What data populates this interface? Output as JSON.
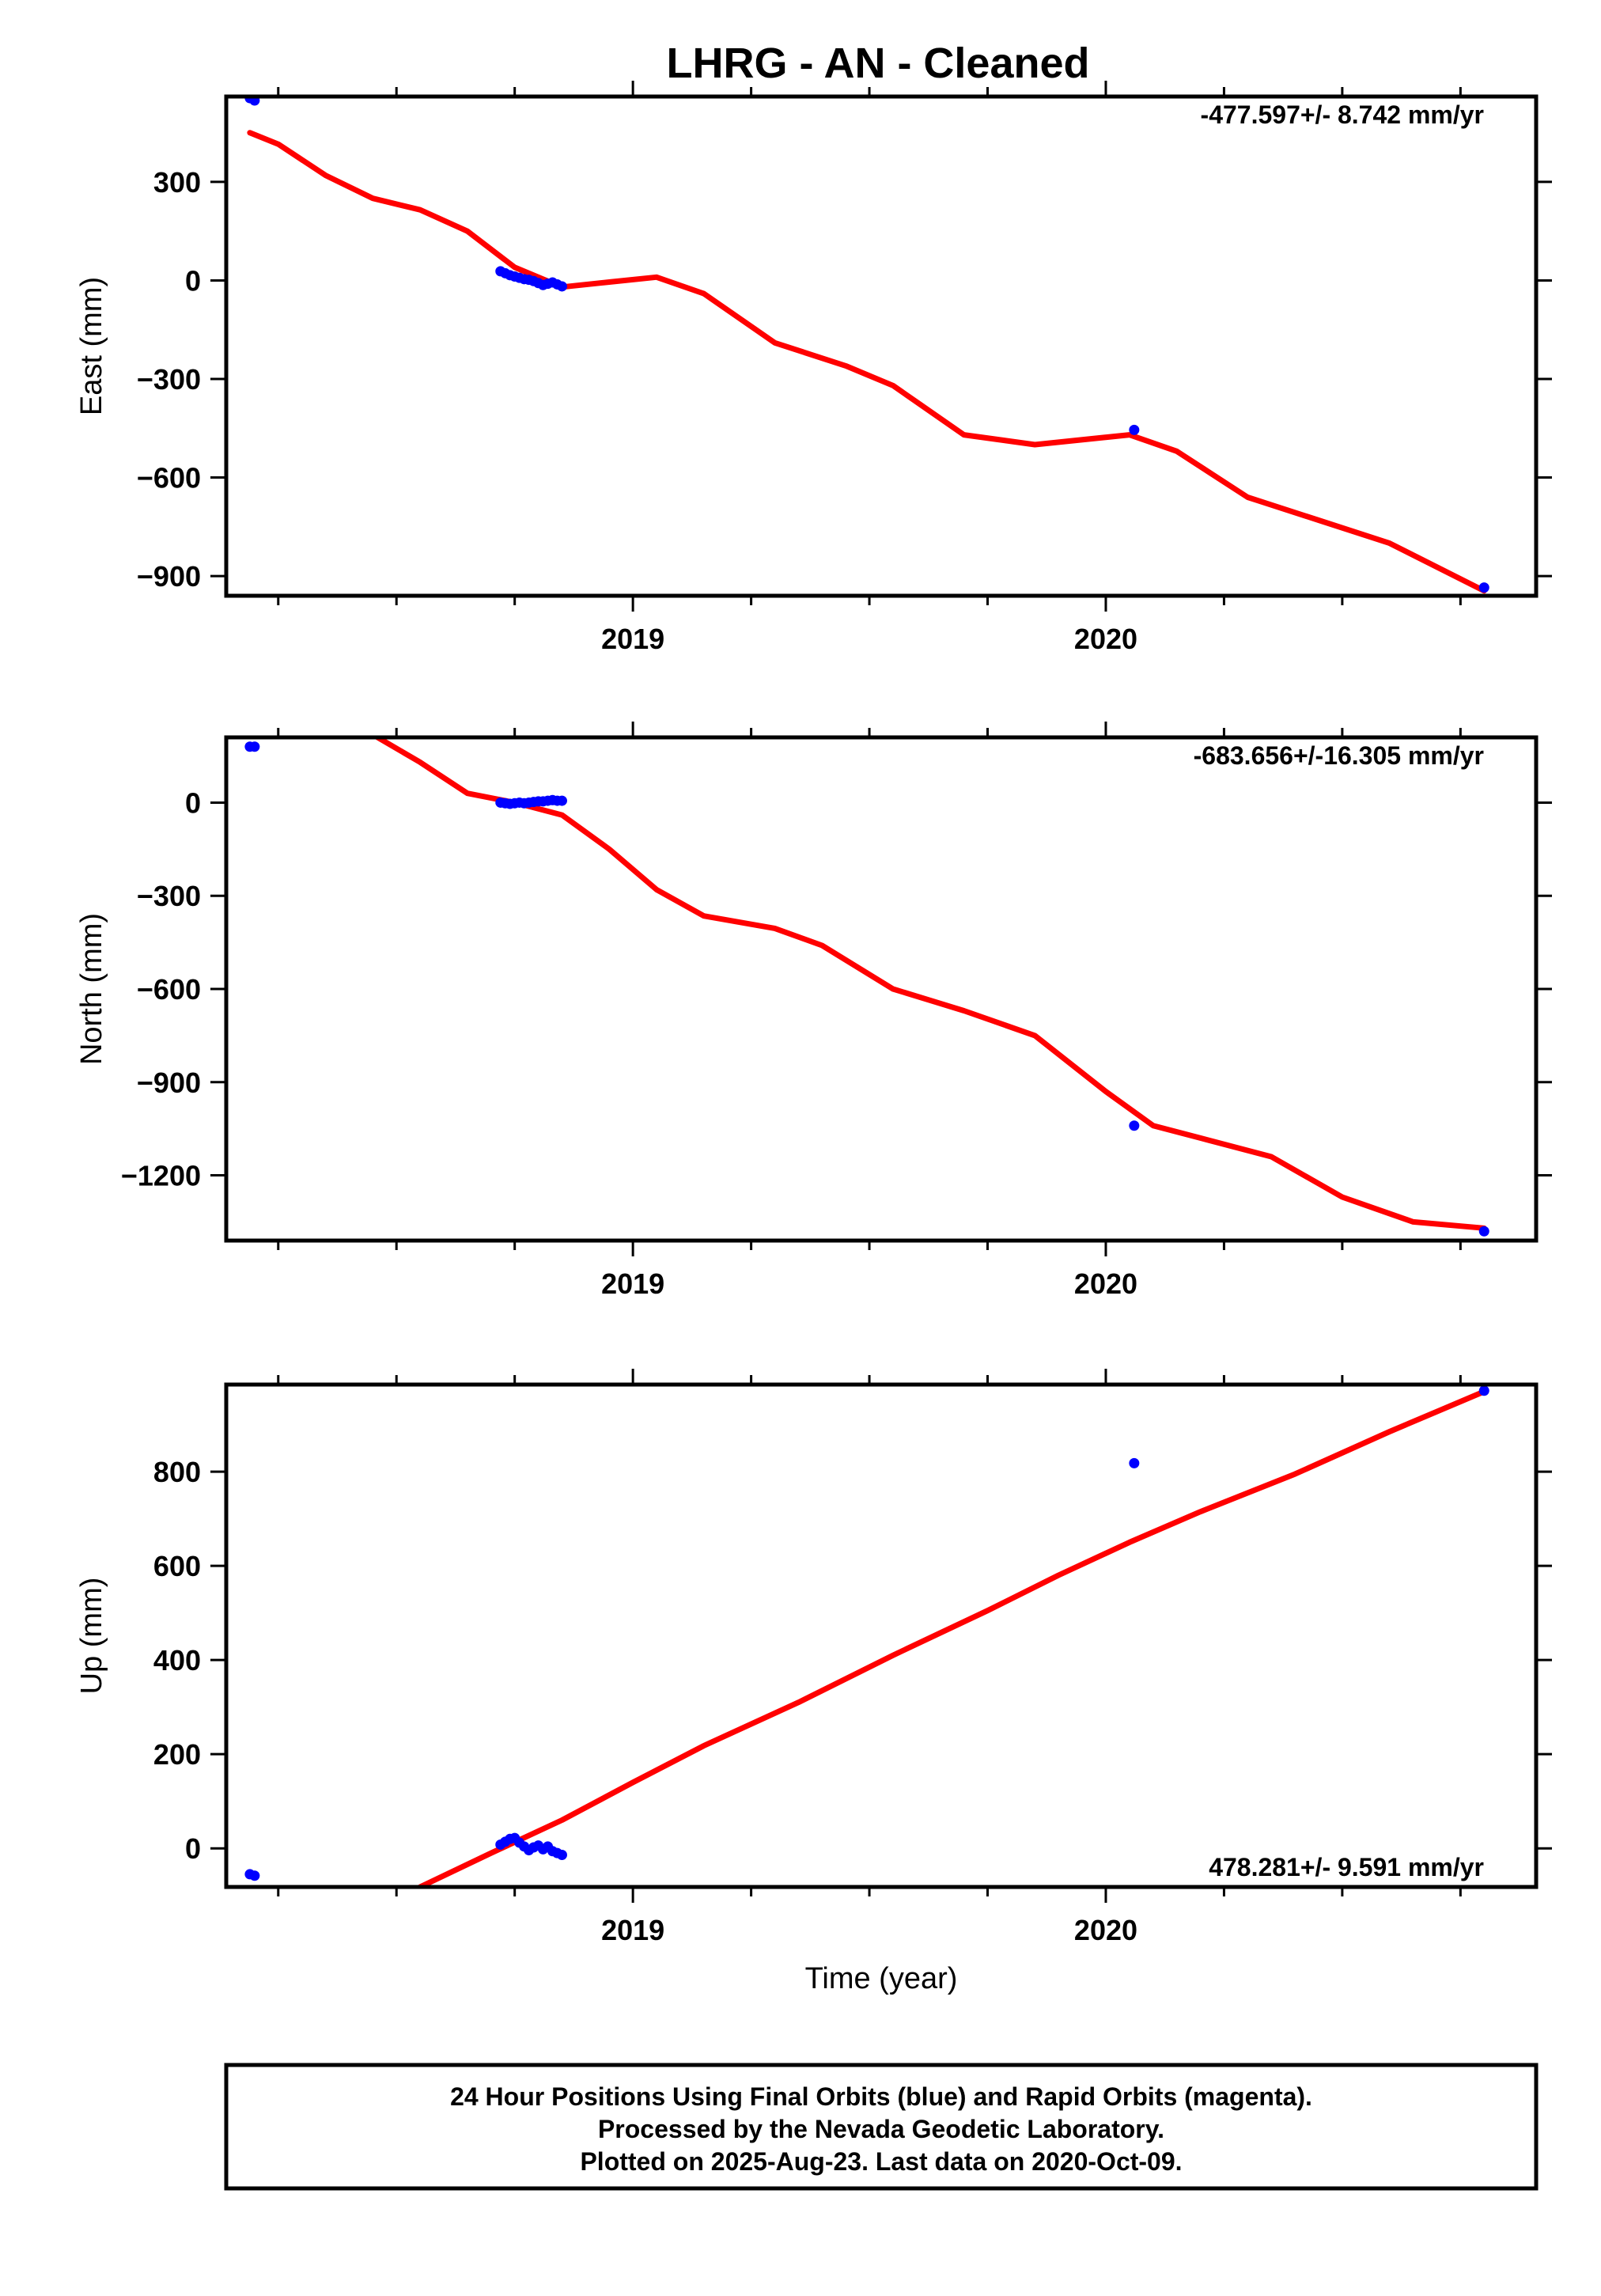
{
  "title": "LHRG  - AN - Cleaned",
  "colors": {
    "final_orbits": "#0000ff",
    "model_fit": "#ff0000",
    "frame": "#000000"
  },
  "chart_data": [
    {
      "type": "scatter",
      "ylabel": "East (mm)",
      "xlabel": "",
      "xlim": [
        2018.14,
        2020.91
      ],
      "ylim": [
        -960,
        560
      ],
      "yticks": [
        -900,
        -600,
        -300,
        0,
        300
      ],
      "ytick_labels": [
        "−900",
        "−600",
        "−300",
        "0",
        "300"
      ],
      "xticks": [
        2019,
        2020
      ],
      "xtick_labels": [
        "2019",
        "2020"
      ],
      "rate": "-477.597+/- 8.742 mm/yr",
      "rate_position": "top-right",
      "points": [
        [
          2018.19,
          555
        ],
        [
          2018.2,
          548
        ],
        [
          2018.72,
          28
        ],
        [
          2018.73,
          22
        ],
        [
          2018.74,
          16
        ],
        [
          2018.75,
          12
        ],
        [
          2018.76,
          8
        ],
        [
          2018.77,
          4
        ],
        [
          2018.78,
          2
        ],
        [
          2018.79,
          -2
        ],
        [
          2018.8,
          -8
        ],
        [
          2018.81,
          -14
        ],
        [
          2018.82,
          -10
        ],
        [
          2018.83,
          -6
        ],
        [
          2018.84,
          -12
        ],
        [
          2018.85,
          -18
        ],
        [
          2020.06,
          -455
        ],
        [
          2020.8,
          -935
        ]
      ],
      "fit": [
        [
          2018.19,
          450
        ],
        [
          2018.25,
          415
        ],
        [
          2018.35,
          320
        ],
        [
          2018.45,
          250
        ],
        [
          2018.55,
          215
        ],
        [
          2018.65,
          150
        ],
        [
          2018.75,
          40
        ],
        [
          2018.85,
          -20
        ],
        [
          2018.95,
          -5
        ],
        [
          2019.05,
          10
        ],
        [
          2019.15,
          -40
        ],
        [
          2019.3,
          -190
        ],
        [
          2019.45,
          -260
        ],
        [
          2019.55,
          -320
        ],
        [
          2019.7,
          -470
        ],
        [
          2019.85,
          -500
        ],
        [
          2020.05,
          -470
        ],
        [
          2020.15,
          -520
        ],
        [
          2020.3,
          -660
        ],
        [
          2020.45,
          -730
        ],
        [
          2020.6,
          -800
        ],
        [
          2020.8,
          -945
        ]
      ]
    },
    {
      "type": "scatter",
      "ylabel": "North (mm)",
      "xlabel": "",
      "xlim": [
        2018.14,
        2020.91
      ],
      "ylim": [
        -1410,
        210
      ],
      "yticks": [
        -1200,
        -900,
        -600,
        -300,
        0
      ],
      "ytick_labels": [
        "−1200",
        "−900",
        "−600",
        "−300",
        "0"
      ],
      "xticks": [
        2019,
        2020
      ],
      "xtick_labels": [
        "2019",
        "2020"
      ],
      "rate": "-683.656+/-16.305 mm/yr",
      "rate_position": "top-right",
      "points": [
        [
          2018.19,
          180
        ],
        [
          2018.2,
          180
        ],
        [
          2018.72,
          0
        ],
        [
          2018.73,
          -2
        ],
        [
          2018.74,
          -4
        ],
        [
          2018.75,
          -2
        ],
        [
          2018.76,
          0
        ],
        [
          2018.77,
          -2
        ],
        [
          2018.78,
          0
        ],
        [
          2018.79,
          2
        ],
        [
          2018.8,
          4
        ],
        [
          2018.81,
          4
        ],
        [
          2018.82,
          6
        ],
        [
          2018.83,
          8
        ],
        [
          2018.84,
          6
        ],
        [
          2018.85,
          6
        ],
        [
          2020.06,
          -1040
        ],
        [
          2020.8,
          -1380
        ]
      ],
      "fit": [
        [
          2018.46,
          210
        ],
        [
          2018.55,
          130
        ],
        [
          2018.65,
          30
        ],
        [
          2018.75,
          0
        ],
        [
          2018.85,
          -40
        ],
        [
          2018.95,
          -150
        ],
        [
          2019.05,
          -280
        ],
        [
          2019.15,
          -365
        ],
        [
          2019.3,
          -405
        ],
        [
          2019.4,
          -460
        ],
        [
          2019.55,
          -600
        ],
        [
          2019.7,
          -670
        ],
        [
          2019.85,
          -750
        ],
        [
          2020.0,
          -930
        ],
        [
          2020.1,
          -1040
        ],
        [
          2020.2,
          -1080
        ],
        [
          2020.35,
          -1140
        ],
        [
          2020.5,
          -1270
        ],
        [
          2020.65,
          -1350
        ],
        [
          2020.8,
          -1370
        ]
      ]
    },
    {
      "type": "scatter",
      "ylabel": "Up (mm)",
      "xlabel": "Time (year)",
      "xlim": [
        2018.14,
        2020.91
      ],
      "ylim": [
        -82,
        985
      ],
      "yticks": [
        0,
        200,
        400,
        600,
        800
      ],
      "ytick_labels": [
        "0",
        "200",
        "400",
        "600",
        "800"
      ],
      "xticks": [
        2019,
        2020
      ],
      "xtick_labels": [
        "2019",
        "2020"
      ],
      "rate": "478.281+/- 9.591 mm/yr",
      "rate_position": "bottom-right",
      "points": [
        [
          2018.19,
          -55
        ],
        [
          2018.2,
          -58
        ],
        [
          2018.72,
          8
        ],
        [
          2018.73,
          14
        ],
        [
          2018.74,
          20
        ],
        [
          2018.75,
          22
        ],
        [
          2018.76,
          12
        ],
        [
          2018.77,
          4
        ],
        [
          2018.78,
          -4
        ],
        [
          2018.79,
          2
        ],
        [
          2018.8,
          6
        ],
        [
          2018.81,
          -2
        ],
        [
          2018.82,
          4
        ],
        [
          2018.83,
          -6
        ],
        [
          2018.84,
          -10
        ],
        [
          2018.85,
          -14
        ],
        [
          2020.06,
          818
        ],
        [
          2020.8,
          972
        ]
      ],
      "fit": [
        [
          2018.55,
          -82
        ],
        [
          2018.7,
          -10
        ],
        [
          2018.85,
          60
        ],
        [
          2019.0,
          140
        ],
        [
          2019.15,
          218
        ],
        [
          2019.35,
          310
        ],
        [
          2019.55,
          410
        ],
        [
          2019.75,
          505
        ],
        [
          2019.9,
          580
        ],
        [
          2020.05,
          650
        ],
        [
          2020.2,
          715
        ],
        [
          2020.4,
          795
        ],
        [
          2020.6,
          885
        ],
        [
          2020.8,
          970
        ]
      ]
    }
  ],
  "footer": {
    "line1": "24 Hour Positions Using Final Orbits (blue) and Rapid Orbits (magenta).",
    "line2": "Processed by the Nevada Geodetic Laboratory.",
    "line3": "Plotted on 2025-Aug-23. Last data on 2020-Oct-09."
  }
}
